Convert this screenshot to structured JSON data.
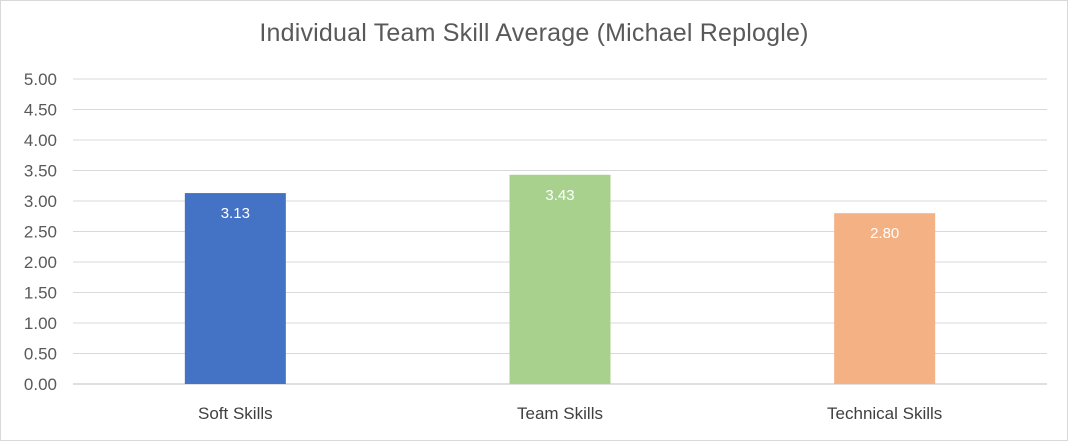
{
  "chart_data": {
    "type": "bar",
    "title": "Individual Team Skill Average (Michael Replogle)",
    "categories": [
      "Soft Skills",
      "Team Skills",
      "Technical Skills"
    ],
    "values": [
      3.13,
      3.43,
      2.8
    ],
    "data_labels": [
      "3.13",
      "3.43",
      "2.80"
    ],
    "colors": [
      "#4472c4",
      "#a9d18e",
      "#f4b183"
    ],
    "ylim": [
      0,
      5
    ],
    "yticks": [
      "0.00",
      "0.50",
      "1.00",
      "1.50",
      "2.00",
      "2.50",
      "3.00",
      "3.50",
      "4.00",
      "4.50",
      "5.00"
    ],
    "grid": true,
    "legend": "none"
  }
}
